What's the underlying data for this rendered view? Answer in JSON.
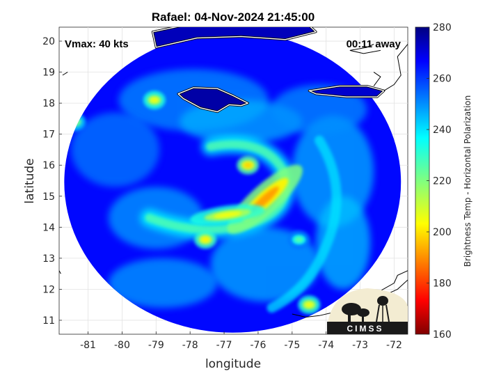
{
  "chart_data": {
    "type": "heatmap",
    "title": "Rafael: 04-Nov-2024 21:45:00",
    "xlabel": "longitude",
    "ylabel": "latitude",
    "xlim": [
      -81.85,
      -71.6
    ],
    "ylim": [
      10.55,
      20.45
    ],
    "xticks": [
      -81,
      -80,
      -79,
      -78,
      -77,
      -76,
      -75,
      -74,
      -73,
      -72
    ],
    "yticks": [
      11,
      12,
      13,
      14,
      15,
      16,
      17,
      18,
      19,
      20
    ],
    "grid": true,
    "annotations": {
      "vmax": "Vmax: 40 kts",
      "away": "00:11 away"
    },
    "colorbar": {
      "label": "Brightness Temp - Horizontal Polarization",
      "range": [
        160,
        280
      ],
      "ticks": [
        160,
        180,
        200,
        220,
        240,
        260,
        280
      ],
      "colormap": "jet"
    },
    "swath": {
      "center_lon": -76.75,
      "center_lat": 15.45,
      "radius_lon": 4.95,
      "radius_lat": 4.85,
      "background_tb": 262
    },
    "storm_center": {
      "lon": -76.0,
      "lat": 14.9
    },
    "features": [
      {
        "name": "eyewall band",
        "lon": -75.8,
        "lat": 14.9,
        "tb": 192
      },
      {
        "name": "inner rain band",
        "lon": -76.9,
        "lat": 14.4,
        "tb": 205
      },
      {
        "name": "north band",
        "lon": -76.3,
        "lat": 16.0,
        "tb": 198
      },
      {
        "name": "convective cell",
        "lon": -77.55,
        "lat": 13.6,
        "tb": 202
      },
      {
        "name": "outer band",
        "lon": -74.8,
        "lat": 13.6,
        "tb": 225
      },
      {
        "name": "cell near Jamaica",
        "lon": -79.05,
        "lat": 18.1,
        "tb": 205
      },
      {
        "name": "western cell",
        "lon": -81.4,
        "lat": 17.4,
        "tb": 215
      },
      {
        "name": "southern cell",
        "lon": -74.5,
        "lat": 11.5,
        "tb": 205
      }
    ],
    "logo": "CIMSS"
  }
}
